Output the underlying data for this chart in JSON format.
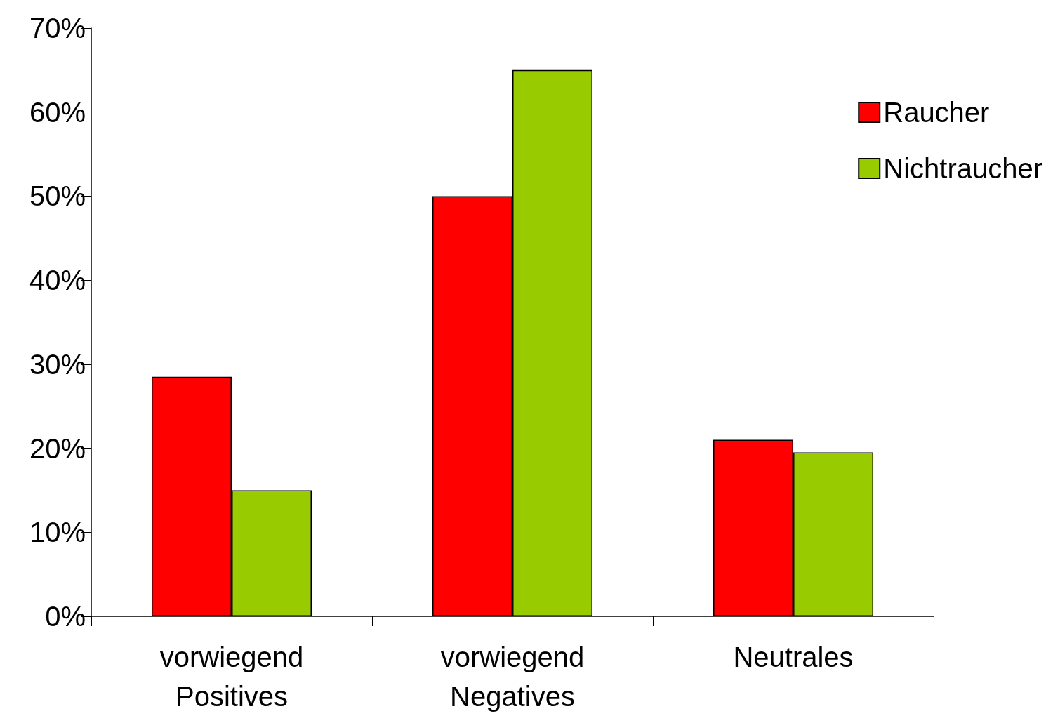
{
  "chart_data": {
    "type": "bar",
    "categories": [
      "vorwiegend\nPositives",
      "vorwiegend\nNegatives",
      "Neutrales"
    ],
    "series": [
      {
        "name": "Raucher",
        "color": "#ff0000",
        "values": [
          28.5,
          50,
          21
        ]
      },
      {
        "name": "Nichtraucher",
        "color": "#99cc00",
        "values": [
          15,
          65,
          19.5
        ]
      }
    ],
    "ylim": [
      0,
      70
    ],
    "yticks": [
      {
        "value": 0,
        "label": "0%"
      },
      {
        "value": 10,
        "label": "10%"
      },
      {
        "value": 20,
        "label": "20%"
      },
      {
        "value": 30,
        "label": "30%"
      },
      {
        "value": 40,
        "label": "40%"
      },
      {
        "value": 50,
        "label": "50%"
      },
      {
        "value": 60,
        "label": "60%"
      },
      {
        "value": 70,
        "label": "70%"
      }
    ],
    "grid": false,
    "legend": "top right"
  }
}
